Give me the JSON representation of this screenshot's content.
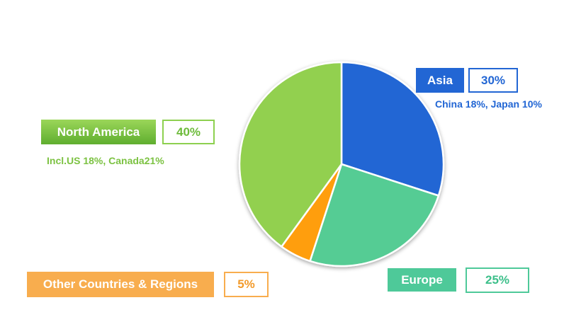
{
  "chart_data": {
    "type": "pie",
    "slices": [
      {
        "name": "Asia",
        "value": 30,
        "label": "30%",
        "note": "China 18%, Japan 10%",
        "color": "#2066d4"
      },
      {
        "name": "Europe",
        "value": 25,
        "label": "25%",
        "note": "",
        "color": "#55cc94"
      },
      {
        "name": "Other Countries & Regions",
        "value": 5,
        "label": "5%",
        "note": "",
        "color": "#ff9e0f"
      },
      {
        "name": "North America",
        "value": 40,
        "label": "40%",
        "note": "Incl.US 18%, Canada21%",
        "color": "#92d050"
      }
    ],
    "start_angle_deg": 0,
    "direction": "clockwise"
  }
}
